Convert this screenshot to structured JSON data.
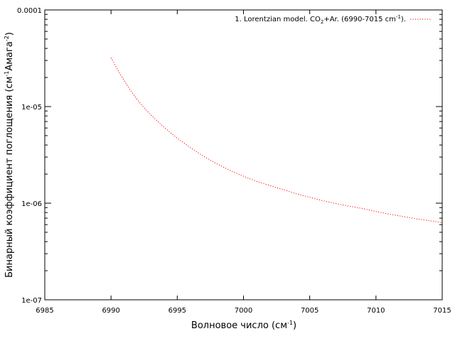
{
  "chart_data": {
    "type": "line",
    "xlabel_main": "Волновое число (см",
    "xlabel_sup": "-1",
    "xlabel_end": ")",
    "ylabel_main": "Бинарный коэффициент поглощения (см",
    "ylabel_sup1": "-1",
    "ylabel_mid": "Амага",
    "ylabel_sup2": "-2",
    "ylabel_end": ")",
    "xlim": [
      6985,
      7015
    ],
    "ylim": [
      1e-07,
      0.0001
    ],
    "yscale": "log",
    "grid": false,
    "legend_position": "top-right",
    "x_ticks": [
      {
        "value": 6985,
        "label": "6985"
      },
      {
        "value": 6990,
        "label": "6990"
      },
      {
        "value": 6995,
        "label": "6995"
      },
      {
        "value": 7000,
        "label": "7000"
      },
      {
        "value": 7005,
        "label": "7005"
      },
      {
        "value": 7010,
        "label": "7010"
      },
      {
        "value": 7015,
        "label": "7015"
      }
    ],
    "y_ticks": [
      {
        "value": 1e-07,
        "label": "1e-07"
      },
      {
        "value": 1e-06,
        "label": "1e-06"
      },
      {
        "value": 1e-05,
        "label": "1e-05"
      },
      {
        "value": 0.0001,
        "label": "0.0001"
      }
    ],
    "legend": {
      "part1": "1. Lorentzian model. CO",
      "sub": "2",
      "part2": "+Ar. (6990-7015 cm",
      "sup": "-1",
      "part3": ")."
    },
    "series": [
      {
        "color": "#ff0000",
        "x": [
          6990,
          6990.5,
          6991,
          6991.5,
          6992,
          6992.5,
          6993,
          6994,
          6995,
          6996,
          6997,
          6998,
          6999,
          7000,
          7001,
          7002,
          7003,
          7004,
          7005,
          7006,
          7007,
          7008,
          7009,
          7010,
          7011,
          7012,
          7013,
          7014,
          7015
        ],
        "y": [
          3.2e-05,
          2.4e-05,
          1.85e-05,
          1.45e-05,
          1.17e-05,
          9.7e-06,
          8.2e-06,
          6.1e-06,
          4.7e-06,
          3.75e-06,
          3.05e-06,
          2.55e-06,
          2.18e-06,
          1.9e-06,
          1.68e-06,
          1.52e-06,
          1.38e-06,
          1.25e-06,
          1.15e-06,
          1.06e-06,
          9.9e-07,
          9.3e-07,
          8.8e-07,
          8.2e-07,
          7.7e-07,
          7.3e-07,
          6.9e-07,
          6.6e-07,
          6.3e-07
        ]
      }
    ]
  }
}
